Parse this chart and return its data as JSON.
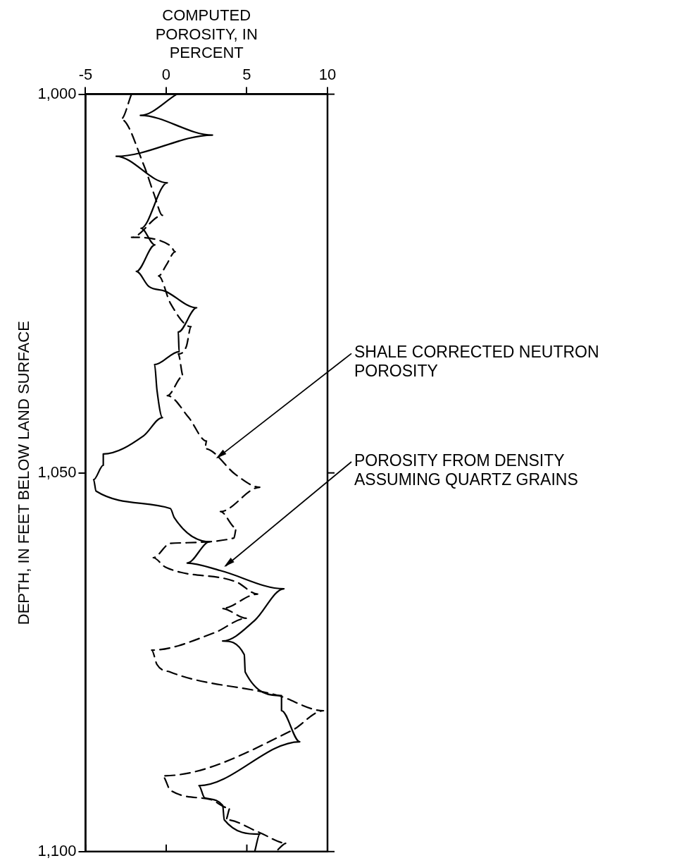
{
  "chart_data": {
    "type": "line",
    "xlabel": "COMPUTED POROSITY, IN PERCENT",
    "ylabel": "DEPTH, IN FEET BELOW LAND SURFACE",
    "xlim": [
      -5,
      10
    ],
    "xticks": [
      -5,
      0,
      5,
      10
    ],
    "ylim": [
      1100,
      1000
    ],
    "yticks": [
      {
        "value": 1000,
        "label": "1,000"
      },
      {
        "value": 1050,
        "label": "1,050"
      },
      {
        "value": 1100,
        "label": "1,100"
      }
    ],
    "grid": false,
    "legend": false,
    "marker": "none",
    "series": [
      {
        "color": "#000000",
        "line_style": "solid",
        "x": [
          0.66,
          -1.6,
          2.87,
          -3.1,
          0.07,
          -1.56,
          -0.7,
          -1.85,
          -1.07,
          -0.08,
          1.89,
          0.75,
          0.8,
          -0.72,
          -0.57,
          -0.23,
          -1.4,
          -3.9,
          -3.9,
          -4.5,
          -4.35,
          0.26,
          0.5,
          2.7,
          1.3,
          3.36,
          7.3,
          5.48,
          3.5,
          4.84,
          4.9,
          7.15,
          7.15,
          8.28,
          2.03,
          2.38,
          3.5,
          3.6,
          5.8,
          5.5
        ],
        "values": [
          1000,
          1002.8,
          1005.4,
          1008.2,
          1011.7,
          1017.7,
          1019.9,
          1023.4,
          1025.4,
          1026,
          1028.2,
          1031.4,
          1034,
          1035.7,
          1039.1,
          1042.7,
          1045.1,
          1047.5,
          1049,
          1050.9,
          1052.4,
          1054.7,
          1055.9,
          1059.1,
          1061.9,
          1062.9,
          1065.3,
          1069.5,
          1072.2,
          1074,
          1076.3,
          1079.4,
          1081.4,
          1085.5,
          1091.3,
          1092.9,
          1093.9,
          1095.8,
          1097.7,
          1099.9
        ]
      },
      {
        "color": "#000000",
        "line_style": "dashed",
        "x": [
          -2.15,
          -2.8,
          -1.4,
          -0.72,
          -0.23,
          -2.15,
          0.26,
          0.56,
          0.02,
          -0.47,
          0.26,
          1.54,
          1.25,
          0.75,
          1.05,
          0.07,
          1.4,
          2.5,
          2.4,
          4.35,
          5.8,
          3.36,
          4.35,
          4.2,
          0.26,
          -0.8,
          -0.08,
          4.35,
          5.67,
          3.46,
          4.98,
          3.0,
          -0.9,
          -0.57,
          0.26,
          6.95,
          9.75,
          7.8,
          -0.23,
          0.26,
          2.7,
          3.95,
          3.7,
          5.8,
          7.45,
          6.8
        ],
        "values": [
          1000,
          1003.3,
          1009.3,
          1013.4,
          1016,
          1018.9,
          1020,
          1020.8,
          1022.5,
          1024,
          1027.6,
          1030.7,
          1033.3,
          1034.3,
          1037.2,
          1039.8,
          1042.7,
          1045.8,
          1046.8,
          1050.3,
          1051.9,
          1055.1,
          1057.3,
          1058.6,
          1059.3,
          1061.2,
          1062.4,
          1064.4,
          1066,
          1067.9,
          1069.2,
          1071.1,
          1073.4,
          1075.3,
          1076.3,
          1079.4,
          1081.4,
          1084,
          1090,
          1091.9,
          1093.1,
          1094.3,
          1095.8,
          1097.5,
          1098.9,
          1100
        ]
      }
    ],
    "annotations": [
      {
        "text": "SHALE CORRECTED NEUTRON POROSITY",
        "x": 3.0,
        "y": 1048.2
      },
      {
        "text": "POROSITY FROM DENSITY ASSUMING QUARTZ GRAINS",
        "x": 3.5,
        "y": 1062.5
      }
    ]
  }
}
